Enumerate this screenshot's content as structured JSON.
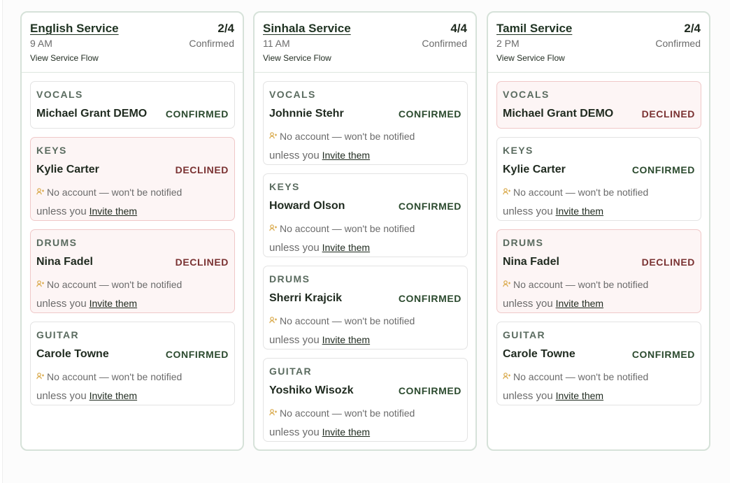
{
  "common": {
    "flow_label": "View Service Flow",
    "no_account_text": "No account — won't be notified",
    "unless_text": "unless you",
    "invite_label": "Invite them"
  },
  "colors": {
    "confirmed": "#2b4a2e",
    "declined": "#7a3232",
    "declined_bg": "#fdf5f5",
    "column_border": "#d6e2d9",
    "warning_icon": "#d9a94a"
  },
  "services": [
    {
      "title": "English Service",
      "count": "2/4",
      "time": "9 AM",
      "status": "Confirmed",
      "assignments": [
        {
          "role": "VOCALS",
          "person": "Michael Grant DEMO",
          "status": "CONFIRMED",
          "state": "confirmed",
          "no_account": false
        },
        {
          "role": "KEYS",
          "person": "Kylie Carter",
          "status": "DECLINED",
          "state": "declined",
          "no_account": true
        },
        {
          "role": "DRUMS",
          "person": "Nina Fadel",
          "status": "DECLINED",
          "state": "declined",
          "no_account": true
        },
        {
          "role": "GUITAR",
          "person": "Carole Towne",
          "status": "CONFIRMED",
          "state": "confirmed",
          "no_account": true
        }
      ]
    },
    {
      "title": "Sinhala Service",
      "count": "4/4",
      "time": "11 AM",
      "status": "Confirmed",
      "assignments": [
        {
          "role": "VOCALS",
          "person": "Johnnie Stehr",
          "status": "CONFIRMED",
          "state": "confirmed",
          "no_account": true
        },
        {
          "role": "KEYS",
          "person": "Howard Olson",
          "status": "CONFIRMED",
          "state": "confirmed",
          "no_account": true
        },
        {
          "role": "DRUMS",
          "person": "Sherri Krajcik",
          "status": "CONFIRMED",
          "state": "confirmed",
          "no_account": true
        },
        {
          "role": "GUITAR",
          "person": "Yoshiko Wisozk",
          "status": "CONFIRMED",
          "state": "confirmed",
          "no_account": true
        }
      ]
    },
    {
      "title": "Tamil Service",
      "count": "2/4",
      "time": "2 PM",
      "status": "Confirmed",
      "assignments": [
        {
          "role": "VOCALS",
          "person": "Michael Grant DEMO",
          "status": "DECLINED",
          "state": "declined",
          "no_account": false
        },
        {
          "role": "KEYS",
          "person": "Kylie Carter",
          "status": "CONFIRMED",
          "state": "confirmed",
          "no_account": true
        },
        {
          "role": "DRUMS",
          "person": "Nina Fadel",
          "status": "DECLINED",
          "state": "declined",
          "no_account": true
        },
        {
          "role": "GUITAR",
          "person": "Carole Towne",
          "status": "CONFIRMED",
          "state": "confirmed",
          "no_account": true
        }
      ]
    }
  ]
}
